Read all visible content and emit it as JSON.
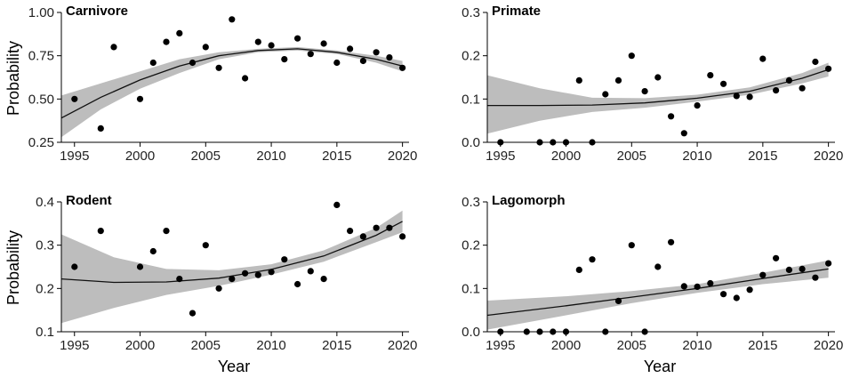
{
  "figure": {
    "xlabel": "Year",
    "ylabel": "Probability"
  },
  "chart_data": [
    {
      "type": "scatter",
      "title": "Carnivore",
      "xlabel": "Year",
      "ylabel": "Probability",
      "xlim": [
        1994,
        2020.5
      ],
      "ylim": [
        0.25,
        1.0
      ],
      "xticks": [
        1995,
        2000,
        2005,
        2010,
        2015,
        2020
      ],
      "yticks": [
        0.25,
        0.5,
        0.75,
        1.0
      ],
      "ytick_labels": [
        "0.25",
        "0.50",
        "0.75",
        "1.00"
      ],
      "points": [
        [
          1995,
          0.5
        ],
        [
          1997,
          0.33
        ],
        [
          1998,
          0.8
        ],
        [
          2000,
          0.5
        ],
        [
          2001,
          0.71
        ],
        [
          2002,
          0.83
        ],
        [
          2003,
          0.88
        ],
        [
          2004,
          0.71
        ],
        [
          2005,
          0.8
        ],
        [
          2006,
          0.68
        ],
        [
          2007,
          0.96
        ],
        [
          2008,
          0.62
        ],
        [
          2009,
          0.83
        ],
        [
          2010,
          0.81
        ],
        [
          2011,
          0.73
        ],
        [
          2012,
          0.85
        ],
        [
          2013,
          0.76
        ],
        [
          2014,
          0.82
        ],
        [
          2015,
          0.71
        ],
        [
          2016,
          0.79
        ],
        [
          2017,
          0.72
        ],
        [
          2018,
          0.77
        ],
        [
          2019,
          0.74
        ],
        [
          2020,
          0.68
        ]
      ],
      "fit": {
        "x": [
          1994,
          1997,
          2000,
          2003,
          2006,
          2009,
          2012,
          2015,
          2018,
          2020
        ],
        "y": [
          0.39,
          0.51,
          0.61,
          0.69,
          0.75,
          0.78,
          0.79,
          0.77,
          0.73,
          0.69
        ]
      },
      "ci_lower": [
        0.28,
        0.44,
        0.56,
        0.65,
        0.73,
        0.77,
        0.78,
        0.76,
        0.71,
        0.66
      ],
      "ci_upper": [
        0.52,
        0.59,
        0.66,
        0.73,
        0.77,
        0.79,
        0.8,
        0.78,
        0.75,
        0.72
      ]
    },
    {
      "type": "scatter",
      "title": "Primate",
      "xlabel": "Year",
      "ylabel": "",
      "xlim": [
        1994,
        2020.5
      ],
      "ylim": [
        0.0,
        0.3
      ],
      "xticks": [
        1995,
        2000,
        2005,
        2010,
        2015,
        2020
      ],
      "yticks": [
        0.0,
        0.1,
        0.2,
        0.3
      ],
      "ytick_labels": [
        "0.0",
        "0.1",
        "0.2",
        "0.3"
      ],
      "points": [
        [
          1995,
          0.0
        ],
        [
          1998,
          0.0
        ],
        [
          1999,
          0.0
        ],
        [
          2000,
          0.0
        ],
        [
          2001,
          0.143
        ],
        [
          2002,
          0.0
        ],
        [
          2003,
          0.111
        ],
        [
          2004,
          0.143
        ],
        [
          2005,
          0.2
        ],
        [
          2006,
          0.118
        ],
        [
          2007,
          0.15
        ],
        [
          2008,
          0.06
        ],
        [
          2009,
          0.021
        ],
        [
          2010,
          0.085
        ],
        [
          2011,
          0.155
        ],
        [
          2012,
          0.135
        ],
        [
          2013,
          0.107
        ],
        [
          2014,
          0.105
        ],
        [
          2015,
          0.193
        ],
        [
          2016,
          0.12
        ],
        [
          2017,
          0.143
        ],
        [
          2018,
          0.125
        ],
        [
          2019,
          0.186
        ],
        [
          2020,
          0.17
        ]
      ],
      "fit": {
        "x": [
          1994,
          1998,
          2002,
          2006,
          2010,
          2014,
          2018,
          2020
        ],
        "y": [
          0.085,
          0.085,
          0.086,
          0.091,
          0.102,
          0.118,
          0.148,
          0.168
        ]
      },
      "ci_lower": [
        0.02,
        0.05,
        0.07,
        0.08,
        0.094,
        0.11,
        0.136,
        0.152
      ],
      "ci_upper": [
        0.155,
        0.125,
        0.103,
        0.102,
        0.11,
        0.127,
        0.16,
        0.184
      ]
    },
    {
      "type": "scatter",
      "title": "Rodent",
      "xlabel": "Year",
      "ylabel": "Probability",
      "xlim": [
        1994,
        2020.5
      ],
      "ylim": [
        0.1,
        0.4
      ],
      "xticks": [
        1995,
        2000,
        2005,
        2010,
        2015,
        2020
      ],
      "yticks": [
        0.1,
        0.2,
        0.3,
        0.4
      ],
      "ytick_labels": [
        "0.1",
        "0.2",
        "0.3",
        "0.4"
      ],
      "points": [
        [
          1995,
          0.25
        ],
        [
          1997,
          0.333
        ],
        [
          2000,
          0.25
        ],
        [
          2001,
          0.286
        ],
        [
          2002,
          0.333
        ],
        [
          2003,
          0.222
        ],
        [
          2004,
          0.143
        ],
        [
          2005,
          0.3
        ],
        [
          2006,
          0.2
        ],
        [
          2007,
          0.222
        ],
        [
          2008,
          0.235
        ],
        [
          2009,
          0.231
        ],
        [
          2010,
          0.238
        ],
        [
          2011,
          0.267
        ],
        [
          2012,
          0.21
        ],
        [
          2013,
          0.24
        ],
        [
          2014,
          0.222
        ],
        [
          2015,
          0.393
        ],
        [
          2016,
          0.333
        ],
        [
          2017,
          0.32
        ],
        [
          2018,
          0.34
        ],
        [
          2019,
          0.34
        ],
        [
          2020,
          0.32
        ]
      ],
      "fit": {
        "x": [
          1994,
          1998,
          2002,
          2006,
          2010,
          2014,
          2018,
          2020
        ],
        "y": [
          0.222,
          0.214,
          0.215,
          0.224,
          0.244,
          0.275,
          0.323,
          0.355
        ]
      },
      "ci_lower": [
        0.12,
        0.155,
        0.185,
        0.206,
        0.232,
        0.262,
        0.307,
        0.33
      ],
      "ci_upper": [
        0.325,
        0.272,
        0.245,
        0.242,
        0.256,
        0.288,
        0.34,
        0.38
      ]
    },
    {
      "type": "scatter",
      "title": "Lagomorph",
      "xlabel": "Year",
      "ylabel": "",
      "xlim": [
        1994,
        2020.5
      ],
      "ylim": [
        0.0,
        0.3
      ],
      "xticks": [
        1995,
        2000,
        2005,
        2010,
        2015,
        2020
      ],
      "yticks": [
        0.0,
        0.1,
        0.2,
        0.3
      ],
      "ytick_labels": [
        "0.0",
        "0.1",
        "0.2",
        "0.3"
      ],
      "points": [
        [
          1995,
          0.0
        ],
        [
          1997,
          0.0
        ],
        [
          1998,
          0.0
        ],
        [
          1999,
          0.0
        ],
        [
          2000,
          0.0
        ],
        [
          2001,
          0.143
        ],
        [
          2002,
          0.167
        ],
        [
          2003,
          0.0
        ],
        [
          2004,
          0.071
        ],
        [
          2005,
          0.2
        ],
        [
          2006,
          0.0
        ],
        [
          2007,
          0.15
        ],
        [
          2008,
          0.207
        ],
        [
          2009,
          0.105
        ],
        [
          2010,
          0.104
        ],
        [
          2011,
          0.112
        ],
        [
          2012,
          0.087
        ],
        [
          2013,
          0.078
        ],
        [
          2014,
          0.097
        ],
        [
          2015,
          0.131
        ],
        [
          2016,
          0.17
        ],
        [
          2017,
          0.143
        ],
        [
          2018,
          0.145
        ],
        [
          2019,
          0.125
        ],
        [
          2020,
          0.158
        ]
      ],
      "fit": {
        "x": [
          1994,
          2000,
          2005,
          2010,
          2015,
          2020
        ],
        "y": [
          0.038,
          0.06,
          0.08,
          0.1,
          0.123,
          0.145
        ]
      },
      "ci_lower": [
        0.005,
        0.038,
        0.066,
        0.09,
        0.11,
        0.125
      ],
      "ci_upper": [
        0.072,
        0.082,
        0.094,
        0.11,
        0.136,
        0.165
      ]
    }
  ]
}
